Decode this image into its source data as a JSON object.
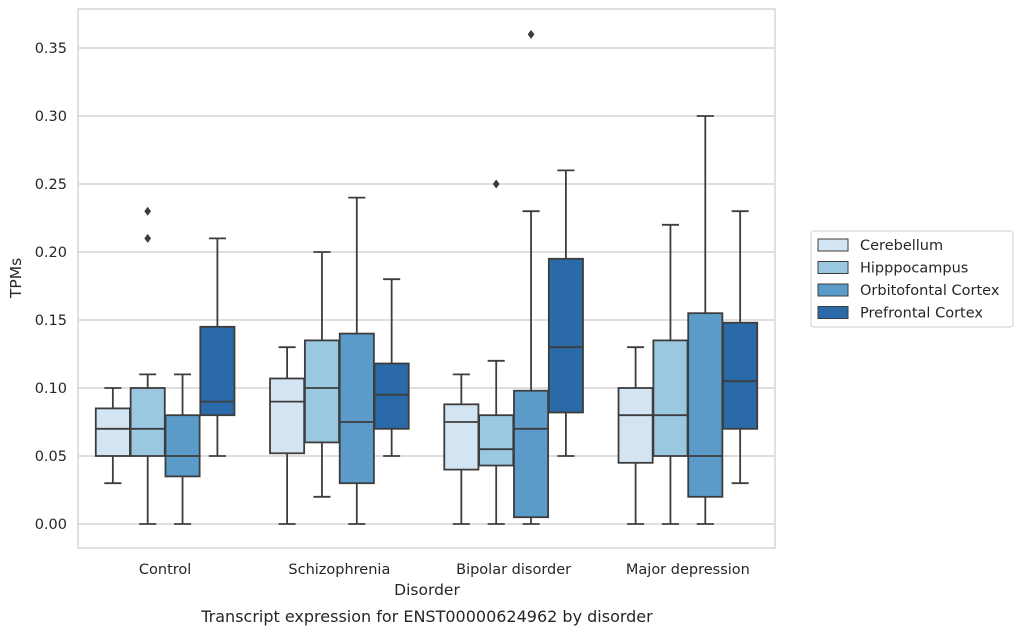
{
  "chart_data": {
    "type": "box",
    "caption": "Transcript expression for ENST00000624962 by disorder",
    "xlabel": "Disorder",
    "ylabel": "TPMs",
    "ylim": [
      -0.017,
      0.378
    ],
    "yticks": [
      0.0,
      0.05,
      0.1,
      0.15,
      0.2,
      0.25,
      0.3,
      0.35
    ],
    "ytick_labels": [
      "0.00",
      "0.05",
      "0.10",
      "0.15",
      "0.20",
      "0.25",
      "0.30",
      "0.35"
    ],
    "grid": "horizontal",
    "legend_position": "right",
    "categories": [
      "Control",
      "Schizophrenia",
      "Bipolar disorder",
      "Major depression"
    ],
    "series": [
      {
        "name": "Cerebellum",
        "color": "#d3e4f3",
        "boxes": [
          {
            "whisker_low": 0.03,
            "q1": 0.05,
            "median": 0.07,
            "q3": 0.085,
            "whisker_high": 0.1,
            "outliers": []
          },
          {
            "whisker_low": 0.0,
            "q1": 0.052,
            "median": 0.09,
            "q3": 0.107,
            "whisker_high": 0.13,
            "outliers": []
          },
          {
            "whisker_low": 0.0,
            "q1": 0.04,
            "median": 0.075,
            "q3": 0.088,
            "whisker_high": 0.11,
            "outliers": []
          },
          {
            "whisker_low": 0.0,
            "q1": 0.045,
            "median": 0.08,
            "q3": 0.1,
            "whisker_high": 0.13,
            "outliers": []
          }
        ]
      },
      {
        "name": "Hipppocampus",
        "color": "#9ac8e0",
        "boxes": [
          {
            "whisker_low": 0.0,
            "q1": 0.05,
            "median": 0.07,
            "q3": 0.1,
            "whisker_high": 0.11,
            "outliers": [
              0.21,
              0.23
            ]
          },
          {
            "whisker_low": 0.02,
            "q1": 0.06,
            "median": 0.1,
            "q3": 0.135,
            "whisker_high": 0.2,
            "outliers": []
          },
          {
            "whisker_low": 0.0,
            "q1": 0.043,
            "median": 0.055,
            "q3": 0.08,
            "whisker_high": 0.12,
            "outliers": [
              0.25
            ]
          },
          {
            "whisker_low": 0.0,
            "q1": 0.05,
            "median": 0.08,
            "q3": 0.135,
            "whisker_high": 0.22,
            "outliers": []
          }
        ]
      },
      {
        "name": "Orbitofontal Cortex",
        "color": "#5b9bc9",
        "boxes": [
          {
            "whisker_low": 0.0,
            "q1": 0.035,
            "median": 0.05,
            "q3": 0.08,
            "whisker_high": 0.11,
            "outliers": []
          },
          {
            "whisker_low": 0.0,
            "q1": 0.03,
            "median": 0.075,
            "q3": 0.14,
            "whisker_high": 0.24,
            "outliers": []
          },
          {
            "whisker_low": 0.0,
            "q1": 0.005,
            "median": 0.07,
            "q3": 0.098,
            "whisker_high": 0.23,
            "outliers": [
              0.36
            ]
          },
          {
            "whisker_low": 0.0,
            "q1": 0.02,
            "median": 0.05,
            "q3": 0.155,
            "whisker_high": 0.3,
            "outliers": []
          }
        ]
      },
      {
        "name": "Prefrontal Cortex",
        "color": "#2b6aa8",
        "boxes": [
          {
            "whisker_low": 0.05,
            "q1": 0.08,
            "median": 0.09,
            "q3": 0.145,
            "whisker_high": 0.21,
            "outliers": []
          },
          {
            "whisker_low": 0.05,
            "q1": 0.07,
            "median": 0.095,
            "q3": 0.118,
            "whisker_high": 0.18,
            "outliers": []
          },
          {
            "whisker_low": 0.05,
            "q1": 0.082,
            "median": 0.13,
            "q3": 0.195,
            "whisker_high": 0.26,
            "outliers": []
          },
          {
            "whisker_low": 0.03,
            "q1": 0.07,
            "median": 0.105,
            "q3": 0.148,
            "whisker_high": 0.23,
            "outliers": []
          }
        ]
      }
    ]
  },
  "colors": {
    "grid": "#cccccc",
    "frame": "#cccccc",
    "box_edge": "#3d3d3d",
    "text": "#262626"
  }
}
